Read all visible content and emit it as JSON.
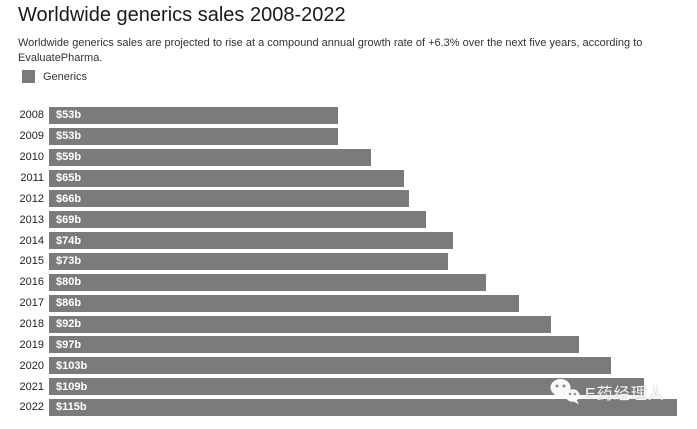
{
  "title": "Worldwide generics sales 2008-2022",
  "subtitle": "Worldwide generics sales are projected to rise at a compound annual growth rate of +6.3% over the next five years, according to\nEvaluatePharma.",
  "legend": {
    "label": "Generics",
    "color": "#7b7b7b"
  },
  "watermark": {
    "icon": "wechat-icon",
    "text": "E药经理人"
  },
  "chart_data": {
    "type": "bar",
    "orientation": "horizontal",
    "title": "Worldwide generics sales 2008-2022",
    "series_name": "Generics",
    "categories": [
      "2008",
      "2009",
      "2010",
      "2011",
      "2012",
      "2013",
      "2014",
      "2015",
      "2016",
      "2017",
      "2018",
      "2019",
      "2020",
      "2021",
      "2022"
    ],
    "values": [
      53,
      53,
      59,
      65,
      66,
      69,
      74,
      73,
      80,
      86,
      92,
      97,
      103,
      109,
      115
    ],
    "value_labels": [
      "$53b",
      "$53b",
      "$59b",
      "$65b",
      "$66b",
      "$69b",
      "$74b",
      "$73b",
      "$80b",
      "$86b",
      "$92b",
      "$97b",
      "$103b",
      "$109b",
      "$115b"
    ],
    "xlim": [
      0,
      115
    ],
    "bar_color": "#7b7b7b",
    "grid": false,
    "legend_position": "top-left"
  }
}
